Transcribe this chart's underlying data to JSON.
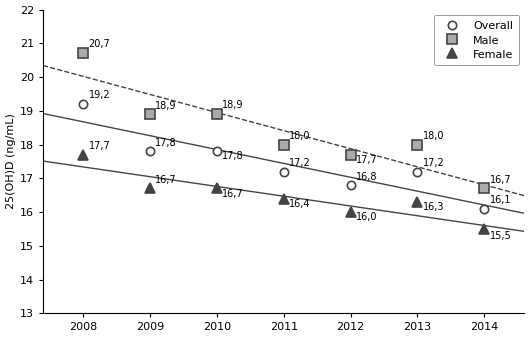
{
  "years": [
    2008,
    2009,
    2010,
    2011,
    2012,
    2013,
    2014
  ],
  "overall": [
    19.2,
    17.8,
    17.8,
    17.2,
    16.8,
    17.2,
    16.1
  ],
  "male": [
    20.7,
    18.9,
    18.9,
    18.0,
    17.7,
    18.0,
    16.7
  ],
  "female": [
    17.7,
    16.7,
    16.7,
    16.4,
    16.0,
    16.3,
    15.5
  ],
  "overall_labels": [
    "19,2",
    "17,8",
    "17,8",
    "17,2",
    "16,8",
    "17,2",
    "16,1"
  ],
  "male_labels": [
    "20,7",
    "18,9",
    "18,9",
    "18,0",
    "17,7",
    "18,0",
    "16,7"
  ],
  "female_labels": [
    "17,7",
    "16,7",
    "16,7",
    "16,4",
    "16,0",
    "16,3",
    "15,5"
  ],
  "overall_label_xoff": [
    0.08,
    0.08,
    0.08,
    0.08,
    0.08,
    0.08,
    0.08
  ],
  "overall_label_yoff": [
    0.12,
    0.1,
    -0.3,
    0.12,
    0.1,
    0.12,
    0.1
  ],
  "male_label_xoff": [
    0.08,
    0.08,
    0.08,
    0.08,
    0.08,
    0.08,
    0.08
  ],
  "male_label_yoff": [
    0.12,
    0.1,
    0.12,
    0.1,
    -0.3,
    0.12,
    0.1
  ],
  "female_label_xoff": [
    0.08,
    0.08,
    0.08,
    0.08,
    0.08,
    0.08,
    0.08
  ],
  "female_label_yoff": [
    0.12,
    0.1,
    -0.3,
    -0.3,
    -0.3,
    -0.3,
    -0.35
  ],
  "ylabel": "25(OH)D (ng/mL)",
  "ylim": [
    13,
    22
  ],
  "yticks": [
    13,
    14,
    15,
    16,
    17,
    18,
    19,
    20,
    21,
    22
  ],
  "xlim": [
    2007.4,
    2014.6
  ],
  "xticks": [
    2008,
    2009,
    2010,
    2011,
    2012,
    2013,
    2014
  ],
  "line_color": "#444444",
  "marker_gray": "#aaaaaa",
  "bg_color": "#ffffff",
  "legend_overall": "Overall",
  "legend_male": "Male",
  "legend_female": "Female",
  "figsize": [
    5.3,
    3.38
  ],
  "dpi": 100
}
